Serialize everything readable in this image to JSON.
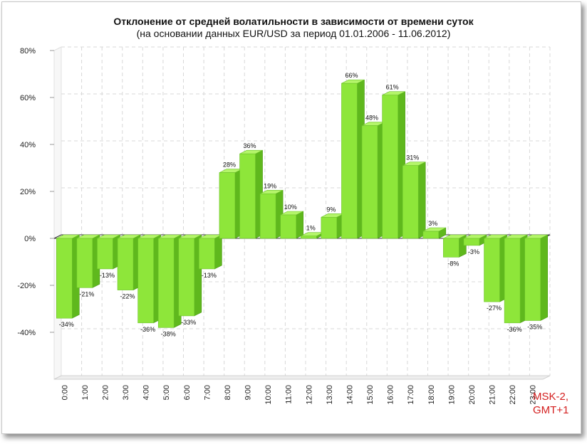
{
  "chart_data": {
    "type": "bar",
    "title": "Отклонение от средней волатильности в зависимости от времени суток",
    "subtitle": "(на основании данных EUR/USD за период 01.01.2006 - 11.06.2012)",
    "categories": [
      "0:00",
      "1:00",
      "2:00",
      "3:00",
      "4:00",
      "5:00",
      "6:00",
      "7:00",
      "8:00",
      "9:00",
      "10:00",
      "11:00",
      "12:00",
      "13:00",
      "14:00",
      "15:00",
      "16:00",
      "17:00",
      "18:00",
      "19:00",
      "20:00",
      "21:00",
      "22:00",
      "23:00"
    ],
    "values": [
      -34,
      -21,
      -13,
      -22,
      -36,
      -38,
      -33,
      -13,
      28,
      36,
      19,
      10,
      1,
      9,
      66,
      48,
      61,
      31,
      3,
      -8,
      -3,
      -27,
      -36,
      -35
    ],
    "value_labels": [
      "-34%",
      "-21%",
      "-13%",
      "-22%",
      "-36%",
      "-38%",
      "-33%",
      "-13%",
      "28%",
      "36%",
      "19%",
      "10%",
      "1%",
      "9%",
      "66%",
      "48%",
      "61%",
      "31%",
      "3%",
      "-8%",
      "-3%",
      "-27%",
      "-36%",
      "-35%"
    ],
    "y_ticks": [
      80,
      60,
      40,
      20,
      0,
      -20,
      -40
    ],
    "y_tick_labels": [
      "80%",
      "60%",
      "40%",
      "20%",
      "0%",
      "-20%",
      "-40%"
    ],
    "ylim": [
      -60,
      80
    ],
    "grid": true,
    "bar_color": "#8ee63a",
    "bar_color_dark": "#5fb81d",
    "bar_color_top": "#b4f56a",
    "xlabel": "",
    "ylabel": ""
  },
  "note": {
    "line1": "MSK-2,",
    "line2": "GMT+1",
    "color": "#d42020"
  }
}
